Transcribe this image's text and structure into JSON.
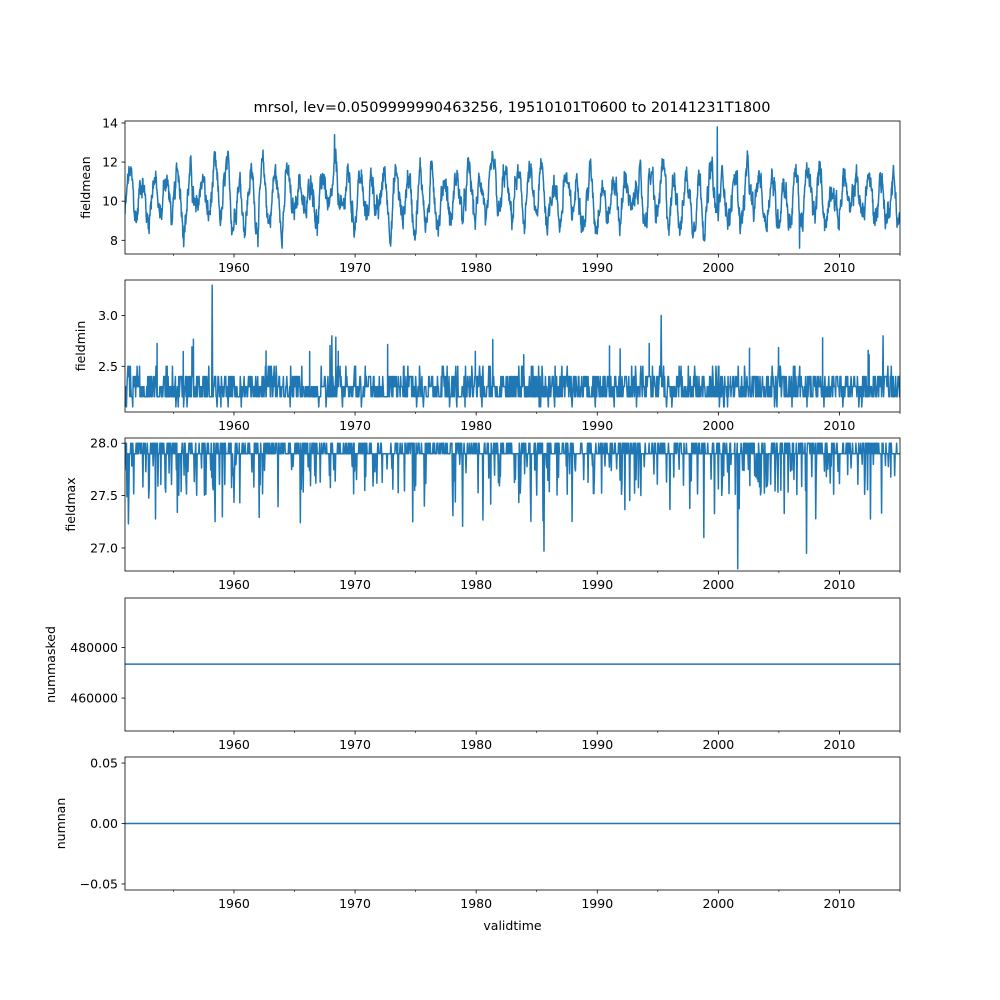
{
  "title": "mrsol, lev=0.0509999990463256, 19510101T0600 to 20141231T1800",
  "colors": {
    "series": "#1f77b4"
  },
  "chart_data": [
    {
      "type": "line",
      "ylabel": "fieldmean",
      "xlabel": "",
      "xlim": [
        1951.0,
        2015.0
      ],
      "ylim": [
        7.3,
        14.1
      ],
      "yticks": [
        8,
        10,
        12,
        14
      ],
      "xticks": [
        1960,
        1970,
        1980,
        1990,
        2000,
        2010
      ],
      "signal": {
        "kind": "seasonal",
        "base": 10.2,
        "amp": 1.1,
        "noise": 0.9,
        "min": 7.6,
        "max": 13.8
      },
      "peaks": [
        {
          "x": 1999.9,
          "y": 13.8
        },
        {
          "x": 1968.3,
          "y": 13.4
        },
        {
          "x": 2006.7,
          "y": 7.6
        }
      ]
    },
    {
      "type": "line",
      "ylabel": "fieldmin",
      "xlabel": "",
      "xlim": [
        1951.0,
        2015.0
      ],
      "ylim": [
        2.05,
        3.35
      ],
      "yticks": [
        2.5,
        3.0
      ],
      "xticks": [
        1960,
        1970,
        1980,
        1990,
        2000,
        2010
      ],
      "signal": {
        "kind": "step",
        "base": 2.3,
        "alts": [
          2.2,
          2.4
        ],
        "min": 2.1,
        "max": 3.3
      },
      "peaks": [
        {
          "x": 1958.2,
          "y": 3.3
        },
        {
          "x": 1995.3,
          "y": 3.0
        },
        {
          "x": 1968.1,
          "y": 2.8
        },
        {
          "x": 2013.6,
          "y": 2.8
        }
      ]
    },
    {
      "type": "line",
      "ylabel": "fieldmax",
      "xlabel": "",
      "xlim": [
        1951.0,
        2015.0
      ],
      "ylim": [
        26.78,
        28.05
      ],
      "yticks": [
        27.0,
        27.5,
        28.0
      ],
      "xticks": [
        1960,
        1970,
        1980,
        1990,
        2000,
        2010
      ],
      "signal": {
        "kind": "dips",
        "base": 27.9,
        "top": 28.0,
        "min": 26.8
      },
      "peaks": [
        {
          "x": 2001.6,
          "y": 26.8
        },
        {
          "x": 1985.6,
          "y": 26.97
        },
        {
          "x": 2007.3,
          "y": 26.95
        },
        {
          "x": 1998.8,
          "y": 27.1
        }
      ]
    },
    {
      "type": "line",
      "ylabel": "nummasked",
      "xlabel": "",
      "xlim": [
        1951.0,
        2015.0
      ],
      "ylim": [
        447000,
        499500
      ],
      "yticks": [
        460000,
        480000
      ],
      "xticks": [
        1960,
        1970,
        1980,
        1990,
        2000,
        2010
      ],
      "signal": {
        "kind": "constant",
        "value": 473400
      }
    },
    {
      "type": "line",
      "ylabel": "numnan",
      "xlabel": "validtime",
      "xlim": [
        1951.0,
        2015.0
      ],
      "ylim": [
        -0.055,
        0.055
      ],
      "yticks": [
        -0.05,
        0.0,
        0.05
      ],
      "ytick_labels": [
        "−0.05",
        "0.00",
        "0.05"
      ],
      "xticks": [
        1960,
        1970,
        1980,
        1990,
        2000,
        2010
      ],
      "signal": {
        "kind": "constant",
        "value": 0.0
      }
    }
  ]
}
